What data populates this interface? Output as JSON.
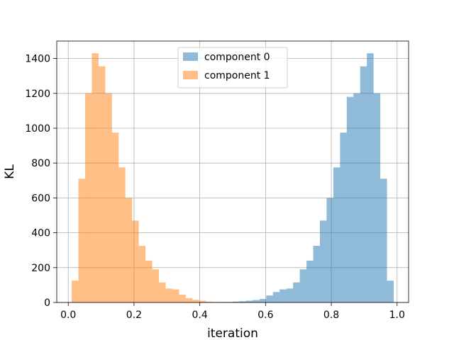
{
  "chart_data": {
    "type": "bar",
    "title": "",
    "xlabel": "iteration",
    "ylabel": "KL",
    "xlim": [
      -0.035,
      1.035
    ],
    "ylim": [
      0,
      1500
    ],
    "x_ticks": [
      0.0,
      0.2,
      0.4,
      0.6,
      0.8,
      1.0
    ],
    "x_tick_labels": [
      "0.0",
      "0.2",
      "0.4",
      "0.6",
      "0.8",
      "1.0"
    ],
    "y_ticks": [
      0,
      200,
      400,
      600,
      800,
      1000,
      1200,
      1400
    ],
    "y_tick_labels": [
      "0",
      "200",
      "400",
      "600",
      "800",
      "1000",
      "1200",
      "1400"
    ],
    "grid": true,
    "legend_position": "top-center",
    "bin_start": 0.0105,
    "bin_width": 0.0204,
    "series": [
      {
        "name": "component 0",
        "color": "#1f77b4",
        "opacity": 0.5,
        "values": [
          0,
          0,
          0,
          0,
          0,
          0,
          0,
          0,
          0,
          0,
          0,
          0,
          0,
          0,
          0,
          0,
          0,
          0,
          0,
          0,
          0,
          1,
          3,
          3,
          5,
          7,
          10,
          14,
          20,
          40,
          60,
          75,
          80,
          115,
          190,
          240,
          325,
          470,
          600,
          775,
          975,
          1180,
          1200,
          1355,
          1430,
          1200,
          710,
          125
        ]
      },
      {
        "name": "component 1",
        "color": "#ff7f0e",
        "opacity": 0.5,
        "values": [
          125,
          710,
          1200,
          1430,
          1355,
          1200,
          975,
          775,
          600,
          470,
          325,
          240,
          190,
          115,
          80,
          75,
          45,
          25,
          15,
          10,
          5,
          3,
          2,
          1,
          0,
          0,
          0,
          0,
          0,
          0,
          0,
          0,
          0,
          0,
          0,
          0,
          0,
          0,
          0,
          0,
          0,
          0,
          0,
          0,
          0,
          0,
          0,
          0
        ]
      }
    ]
  }
}
